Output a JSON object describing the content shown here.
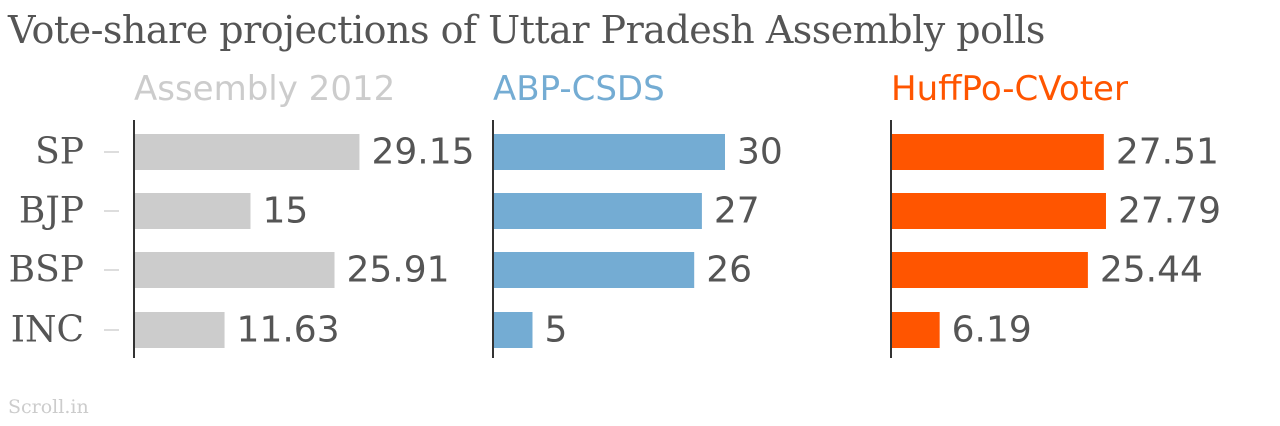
{
  "title": "Vote-share projections of Uttar Pradesh Assembly polls",
  "source": "Scroll.in",
  "chart_data": {
    "type": "bar",
    "orientation": "horizontal",
    "categories": [
      "SP",
      "BJP",
      "BSP",
      "INC"
    ],
    "series": [
      {
        "name": "Assembly 2012",
        "color": "#cccccc",
        "values": [
          29.15,
          15,
          25.91,
          11.63
        ]
      },
      {
        "name": "ABP-CSDS",
        "color": "#74acd3",
        "values": [
          30,
          27,
          26,
          5
        ]
      },
      {
        "name": "HuffPo-CVoter",
        "color": "#ff5500",
        "values": [
          27.51,
          27.79,
          25.44,
          6.19
        ]
      }
    ],
    "grid": false
  }
}
